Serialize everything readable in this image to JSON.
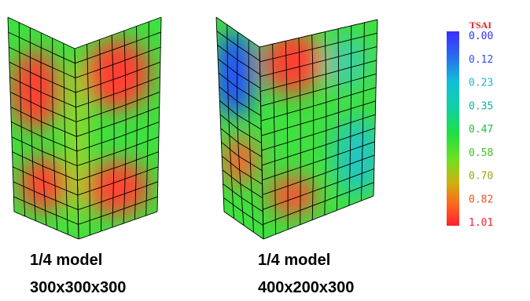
{
  "models": [
    {
      "label": "1/4 model",
      "size": "300x300x300"
    },
    {
      "label": "1/4 model",
      "size": "400x200x300"
    }
  ],
  "legend": {
    "title": "TSAI",
    "labels": [
      "0.00",
      "0.12",
      "0.23",
      "0.35",
      "0.47",
      "0.58",
      "0.70",
      "0.82",
      "1.01"
    ]
  }
}
